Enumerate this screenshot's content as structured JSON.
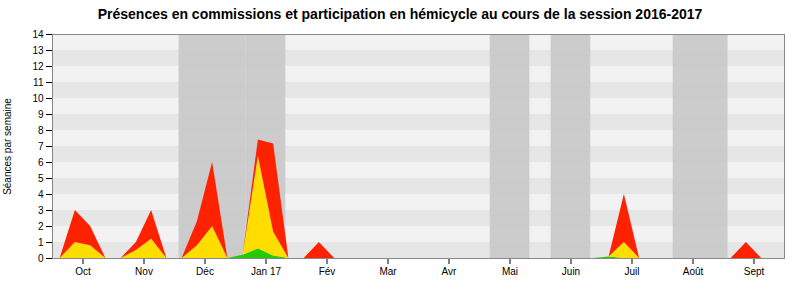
{
  "chart_data": {
    "type": "area",
    "stacked": true,
    "title": "Présences en commissions et participation en hémicycle au cours de la session 2016-2017",
    "ylabel": "Séances par semaine",
    "x": [
      0,
      1,
      2,
      3,
      4,
      5,
      6,
      7,
      8,
      9,
      10,
      11,
      12,
      13,
      14,
      15,
      16,
      17,
      18,
      19,
      20,
      21,
      22,
      23,
      24,
      25,
      26,
      27,
      28,
      29,
      30,
      31,
      32,
      33,
      34,
      35,
      36,
      37,
      38,
      39,
      40,
      41,
      42,
      43,
      44,
      45,
      46,
      47
    ],
    "xlim": [
      -0.5,
      47.5
    ],
    "xticks": [
      {
        "value": 1.5,
        "label": "Oct"
      },
      {
        "value": 5.5,
        "label": "Nov"
      },
      {
        "value": 9.5,
        "label": "Déc"
      },
      {
        "value": 13.5,
        "label": "Jan 17"
      },
      {
        "value": 17.5,
        "label": "Fév"
      },
      {
        "value": 21.5,
        "label": "Mar"
      },
      {
        "value": 25.5,
        "label": "Avr"
      },
      {
        "value": 29.5,
        "label": "Mai"
      },
      {
        "value": 33.5,
        "label": "Juin"
      },
      {
        "value": 37.5,
        "label": "Juil"
      },
      {
        "value": 41.5,
        "label": "Août"
      },
      {
        "value": 45.5,
        "label": "Sept"
      }
    ],
    "ylim": [
      0,
      14
    ],
    "yticks": [
      0,
      1,
      2,
      3,
      4,
      5,
      6,
      7,
      8,
      9,
      10,
      11,
      12,
      13,
      14
    ],
    "shaded_ranges": [
      [
        7.8,
        12.2
      ],
      [
        12.2,
        14.8
      ],
      [
        28.2,
        30.8
      ],
      [
        32.2,
        34.8
      ],
      [
        40.2,
        43.8
      ]
    ],
    "series": [
      {
        "color": "#22cc00",
        "values": [
          0,
          0,
          0,
          0,
          0,
          0,
          0,
          0,
          0,
          0,
          0,
          0,
          0.2,
          0.6,
          0.15,
          0,
          0,
          0,
          0,
          0,
          0,
          0,
          0,
          0,
          0,
          0,
          0,
          0,
          0,
          0,
          0,
          0,
          0,
          0,
          0,
          0,
          0.1,
          0,
          0,
          0,
          0,
          0,
          0,
          0,
          0,
          0,
          0,
          0
        ]
      },
      {
        "color": "#ffdd00",
        "values": [
          0,
          1.0,
          0.8,
          0,
          0,
          0.5,
          1.2,
          0,
          0,
          0.8,
          2.0,
          0,
          0,
          5.8,
          1.5,
          0,
          0,
          0,
          0,
          0,
          0,
          0,
          0,
          0,
          0,
          0,
          0,
          0,
          0,
          0,
          0,
          0,
          0,
          0,
          0,
          0,
          0,
          1.0,
          0,
          0,
          0,
          0,
          0,
          0,
          0,
          0,
          0,
          0
        ]
      },
      {
        "color": "#ff2200",
        "values": [
          0,
          2.0,
          1.2,
          0,
          0,
          0.5,
          1.8,
          0,
          0,
          1.5,
          4.0,
          0,
          0,
          1.0,
          5.5,
          0,
          0,
          1.0,
          0,
          0,
          0,
          0,
          0,
          0,
          0,
          0,
          0,
          0,
          0,
          0,
          0,
          0,
          0,
          0,
          0,
          0,
          0,
          3.0,
          0,
          0,
          0,
          0,
          0,
          0,
          0,
          1.0,
          0,
          0
        ]
      }
    ]
  }
}
